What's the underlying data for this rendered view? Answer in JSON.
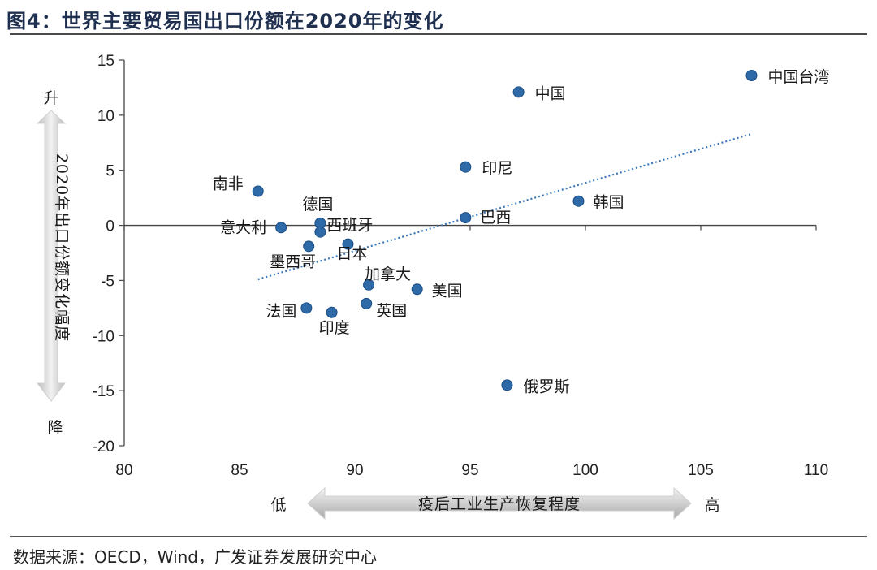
{
  "figure": {
    "title": "图4：世界主要贸易国出口份额在2020年的变化",
    "source": "数据来源：OECD，Wind，广发证券发展研究中心"
  },
  "y_arrow": {
    "label": "2020年出口份额变化幅度",
    "top": "升",
    "bottom": "降"
  },
  "x_arrow": {
    "label": "疫后工业生产恢复程度",
    "left": "低",
    "right": "高"
  },
  "chart_data": {
    "type": "scatter",
    "title": "",
    "xlabel": "疫后工业生产恢复程度",
    "ylabel": "2020年出口份额变化幅度",
    "xlim": [
      80,
      110
    ],
    "ylim": [
      -20,
      15
    ],
    "xticks": [
      80,
      85,
      90,
      95,
      100,
      105,
      110
    ],
    "yticks": [
      15,
      10,
      5,
      0,
      -5,
      -10,
      -15,
      -20
    ],
    "grid": false,
    "marker_color": "#2e6aa8",
    "trendline": {
      "style": "dotted",
      "color": "#3b78b9",
      "x": [
        85.8,
        107.2
      ],
      "y": [
        -4.9,
        8.3
      ]
    },
    "points": [
      {
        "name": "中国台湾",
        "x": 107.2,
        "y": 13.6
      },
      {
        "name": "中国",
        "x": 97.1,
        "y": 12.1
      },
      {
        "name": "印尼",
        "x": 94.8,
        "y": 5.3
      },
      {
        "name": "韩国",
        "x": 99.7,
        "y": 2.2
      },
      {
        "name": "巴西",
        "x": 94.8,
        "y": 0.7
      },
      {
        "name": "南非",
        "x": 85.8,
        "y": 3.1
      },
      {
        "name": "德国",
        "x": 88.5,
        "y": 0.2
      },
      {
        "name": "西班牙",
        "x": 88.5,
        "y": -0.6
      },
      {
        "name": "意大利",
        "x": 86.8,
        "y": -0.2
      },
      {
        "name": "墨西哥",
        "x": 88.0,
        "y": -1.9
      },
      {
        "name": "日本",
        "x": 89.7,
        "y": -1.7
      },
      {
        "name": "加拿大",
        "x": 90.6,
        "y": -5.4
      },
      {
        "name": "美国",
        "x": 92.7,
        "y": -5.8
      },
      {
        "name": "法国",
        "x": 87.9,
        "y": -7.5
      },
      {
        "name": "英国",
        "x": 90.5,
        "y": -7.1
      },
      {
        "name": "印度",
        "x": 89.0,
        "y": -7.9
      },
      {
        "name": "俄罗斯",
        "x": 96.6,
        "y": -14.5
      }
    ]
  }
}
